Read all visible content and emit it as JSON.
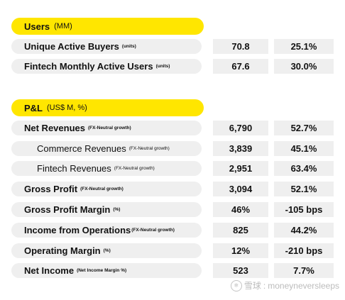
{
  "users": {
    "title": "Users",
    "unit": "(MM)",
    "rows": [
      {
        "label": "Unique Active Buyers",
        "note": "(units)",
        "value": "70.8",
        "growth": "25.1%"
      },
      {
        "label": "Fintech Monthly Active Users",
        "note": "(units)",
        "value": "67.6",
        "growth": "30.0%"
      }
    ]
  },
  "pl": {
    "title": "P&L",
    "unit": "(US$ M, %)",
    "rows": [
      {
        "label": "Net Revenues",
        "note": "(FX-Neutral growth)",
        "value": "6,790",
        "growth": "52.7%"
      },
      {
        "label": "Commerce Revenues",
        "note": "(FX-Neutral growth)",
        "value": "3,839",
        "growth": "45.1%"
      },
      {
        "label": "Fintech Revenues",
        "note": "(FX-Neutral growth)",
        "value": "2,951",
        "growth": "63.4%"
      },
      {
        "label": "Gross Profit",
        "note": "(FX-Neutral growth)",
        "value": "3,094",
        "growth": "52.1%"
      },
      {
        "label": "Gross Profit Margin",
        "note": "(%)",
        "value": "46%",
        "growth": "-105 bps"
      },
      {
        "label": "Income from Operations",
        "note": "(FX-Neutral growth)",
        "value": "825",
        "growth": "44.2%"
      },
      {
        "label": "Operating Margin",
        "note": "(%)",
        "value": "12%",
        "growth": "-210 bps"
      },
      {
        "label": "Net Income",
        "note": "(Net Income Margin %)",
        "value": "523",
        "growth": "7.7%"
      }
    ]
  },
  "watermark": {
    "site": "雪球",
    "separator": ":",
    "user": "moneyneversleeps"
  }
}
